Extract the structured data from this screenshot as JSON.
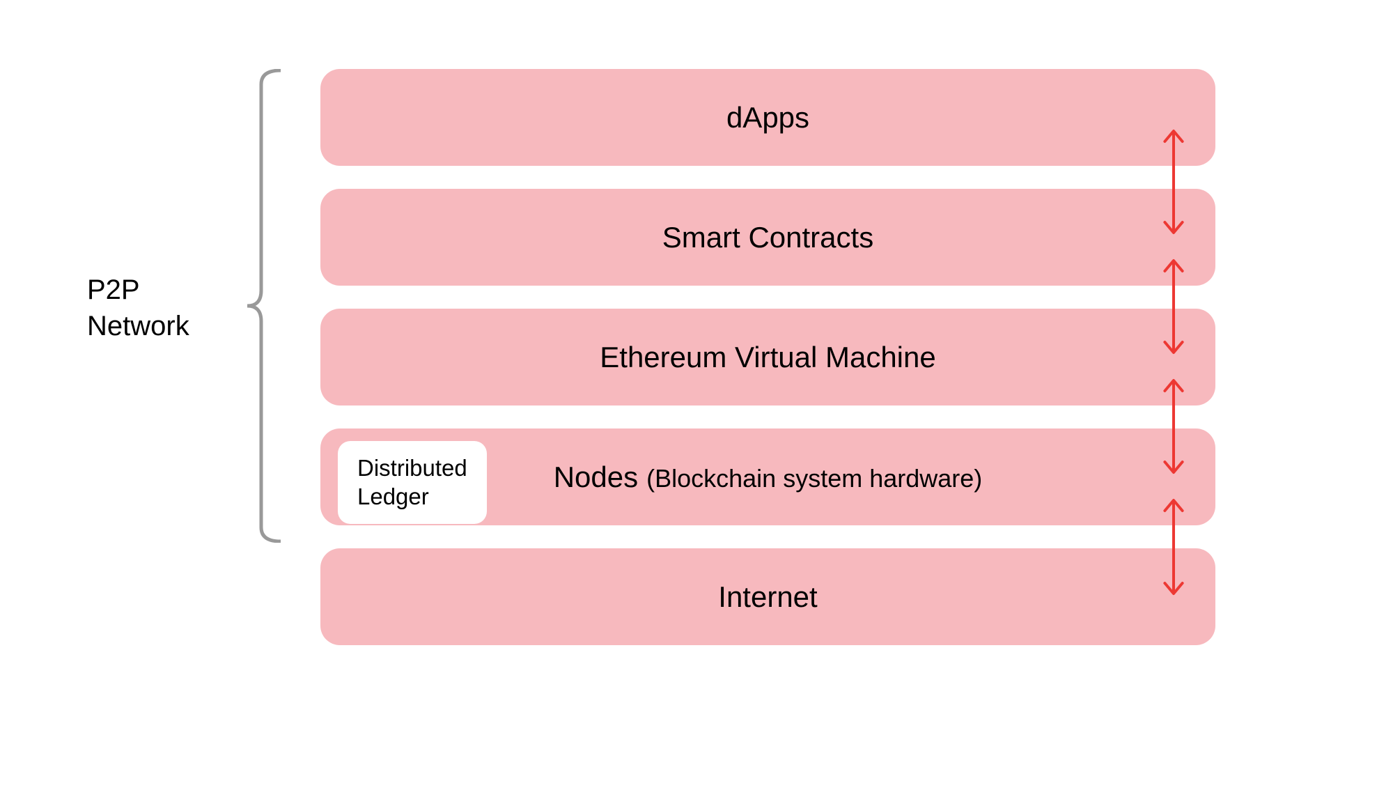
{
  "sideLabel": {
    "line1": "P2P",
    "line2": "Network"
  },
  "layers": [
    {
      "title": "dApps",
      "subtitle": null,
      "inset": null
    },
    {
      "title": "Smart Contracts",
      "subtitle": null,
      "inset": null
    },
    {
      "title": "Ethereum Virtual Machine",
      "subtitle": null,
      "inset": null
    },
    {
      "title": "Nodes",
      "subtitle": "(Blockchain system hardware)",
      "inset": {
        "line1": "Distributed",
        "line2": "Ledger"
      }
    },
    {
      "title": "Internet",
      "subtitle": null,
      "inset": null
    }
  ],
  "styling": {
    "layerBackground": "#f7b9be",
    "arrowColor": "#ed3833",
    "braceColor": "#999999",
    "textColor": "#000000",
    "pageBackground": "#ffffff",
    "insetBackground": "#ffffff",
    "layerBorderRadius": 28,
    "insetBorderRadius": 18,
    "titleFontSize": 42,
    "subtitleFontSize": 36,
    "sideLabelFontSize": 40,
    "insetFontSize": 33,
    "layerHeight": 139,
    "layerGap": 33,
    "braceStrokeWidth": 5,
    "arrowStrokeWidth": 4,
    "arrowHeadSize": 18
  },
  "arrowPositions": [
    {
      "topY": 0,
      "bottomY": 152
    },
    {
      "topY": 186,
      "bottomY": 324
    },
    {
      "topY": 358,
      "bottomY": 496
    },
    {
      "topY": 530,
      "bottomY": 670
    }
  ]
}
